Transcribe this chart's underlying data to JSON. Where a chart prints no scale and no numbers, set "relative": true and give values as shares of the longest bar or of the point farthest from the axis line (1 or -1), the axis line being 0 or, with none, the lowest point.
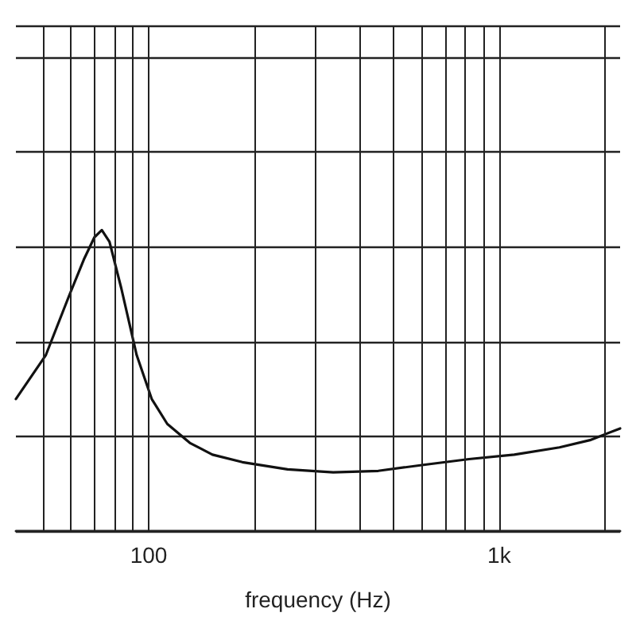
{
  "chart_data": {
    "type": "line",
    "xlabel": "frequency (Hz)",
    "relative": true,
    "log": "x",
    "grid": true,
    "tick_labels": "x",
    "marker": "none",
    "line_style": "solid",
    "xlim": [
      41.8,
      2213
    ],
    "xticks": [
      {
        "value": 50,
        "label": null
      },
      {
        "value": 60,
        "label": null
      },
      {
        "value": 70,
        "label": null
      },
      {
        "value": 80,
        "label": null
      },
      {
        "value": 90,
        "label": null
      },
      {
        "value": 100,
        "label": "100"
      },
      {
        "value": 200,
        "label": null
      },
      {
        "value": 300,
        "label": null
      },
      {
        "value": 400,
        "label": null
      },
      {
        "value": 500,
        "label": null
      },
      {
        "value": 600,
        "label": null
      },
      {
        "value": 700,
        "label": null
      },
      {
        "value": 800,
        "label": null
      },
      {
        "value": 900,
        "label": null
      },
      {
        "value": 1000,
        "label": "1k"
      },
      {
        "value": 2000,
        "label": null
      }
    ],
    "series": [
      {
        "color": "#111111",
        "x": [
          41.8,
          50.9,
          59.2,
          65.3,
          70.0,
          73.5,
          77.3,
          83.6,
          92.4,
          102,
          113,
          131,
          152,
          185,
          249,
          336,
          452,
          608,
          820,
          1104,
          1486,
          1815,
          2213
        ],
        "values": [
          0.439,
          0.585,
          0.78,
          0.902,
          0.976,
          1.0,
          0.961,
          0.805,
          0.585,
          0.439,
          0.356,
          0.293,
          0.254,
          0.229,
          0.205,
          0.195,
          0.2,
          0.22,
          0.239,
          0.254,
          0.278,
          0.302,
          0.341
        ]
      }
    ]
  }
}
